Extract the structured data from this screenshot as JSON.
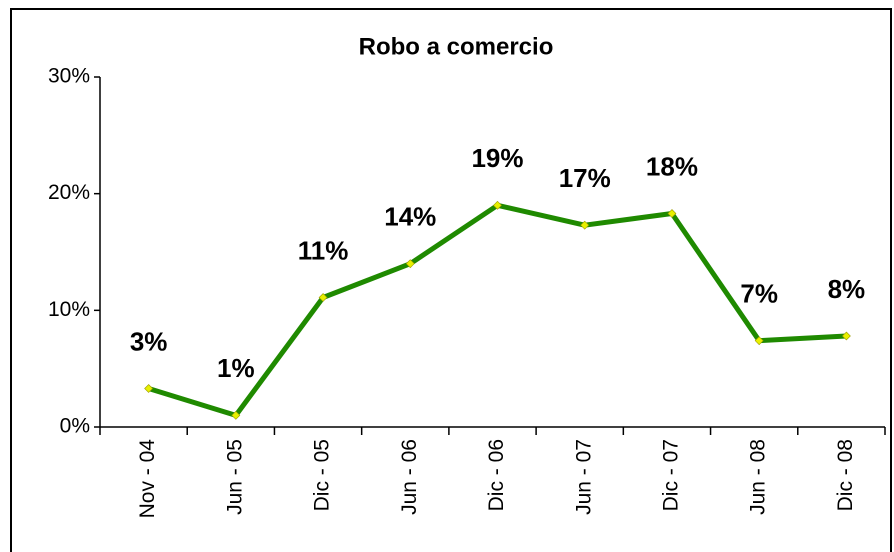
{
  "chart_data": {
    "type": "line",
    "title": "Robo a comercio",
    "categories": [
      "Nov - 04",
      "Jun - 05",
      "Dic - 05",
      "Jun - 06",
      "Dic - 06",
      "Jun - 07",
      "Dic - 07",
      "Jun - 08",
      "Dic - 08"
    ],
    "series": [
      {
        "name": "Robo a comercio",
        "color": "#1f8a00",
        "values": [
          3.3,
          1.0,
          11.1,
          14.0,
          19.0,
          17.3,
          18.3,
          7.4,
          7.8
        ],
        "value_labels": [
          "3%",
          "1%",
          "11%",
          "14%",
          "19%",
          "17%",
          "18%",
          "7%",
          "8%"
        ]
      }
    ],
    "ylim": [
      0,
      30
    ],
    "yticks": [
      {
        "value": 0,
        "label": "0%"
      },
      {
        "value": 10,
        "label": "10%"
      },
      {
        "value": 20,
        "label": "20%"
      },
      {
        "value": 30,
        "label": "30%"
      }
    ],
    "grid": false,
    "marker_color": "#e8f000"
  }
}
